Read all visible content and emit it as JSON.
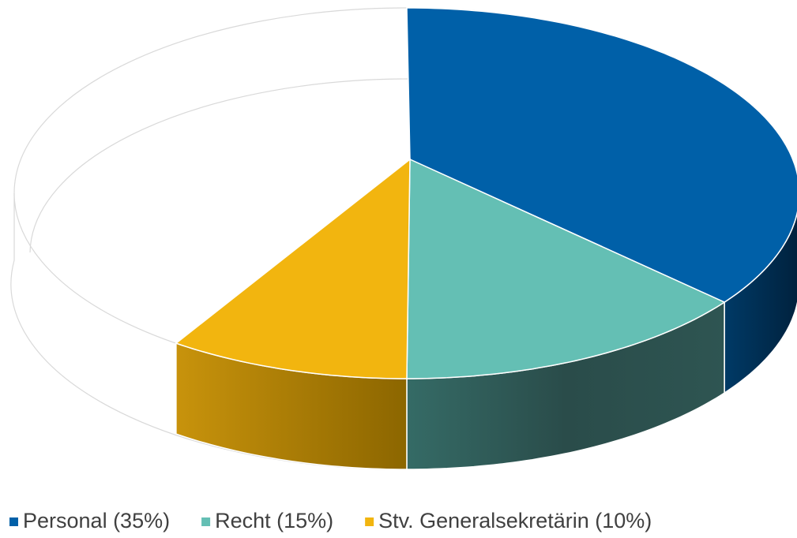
{
  "chart_data": {
    "type": "pie",
    "categories": [
      "Personal (35%)",
      "Recht (15%)",
      "Stv. Generalsekretärin (10%)"
    ],
    "values": [
      35,
      15,
      10
    ],
    "colors": [
      "#0060a8",
      "#64bfb4",
      "#f2b50f"
    ],
    "legend": "bottom"
  }
}
